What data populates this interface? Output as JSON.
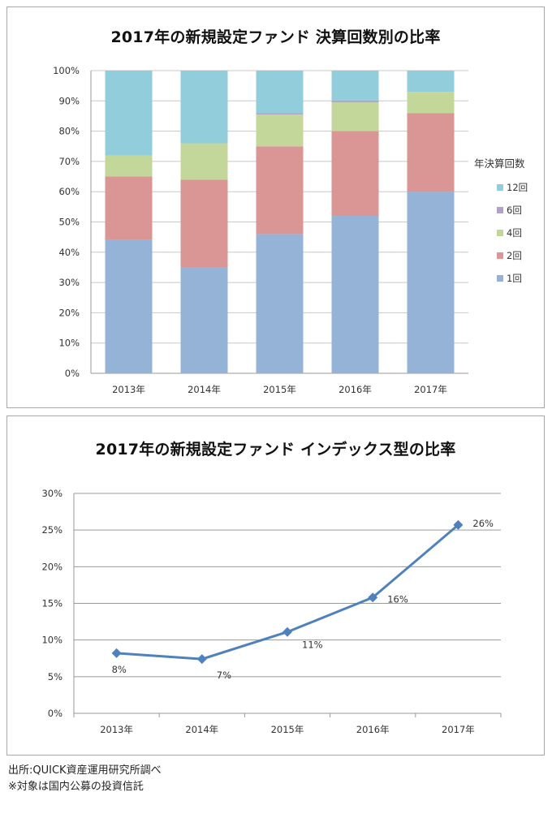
{
  "chart_data": [
    {
      "type": "bar",
      "stacked": true,
      "percent_stacked": true,
      "title": "2017年の新規設定ファンド  決算回数別の比率",
      "xlabel": "",
      "ylabel": "",
      "categories": [
        "2013年",
        "2014年",
        "2015年",
        "2016年",
        "2017年"
      ],
      "ylim": [
        0,
        100
      ],
      "yticks": [
        "0%",
        "10%",
        "20%",
        "30%",
        "40%",
        "50%",
        "60%",
        "70%",
        "80%",
        "90%",
        "100%"
      ],
      "grid": true,
      "legend": {
        "title": "年決算回数",
        "placement": "right"
      },
      "series": [
        {
          "name": "1回",
          "color": "#95b3d7",
          "values": [
            44,
            35,
            46,
            52,
            60
          ]
        },
        {
          "name": "2回",
          "color": "#da9694",
          "values": [
            21,
            29,
            29,
            28,
            26
          ]
        },
        {
          "name": "4回",
          "color": "#c4d79b",
          "values": [
            7,
            12,
            10.5,
            9.5,
            7
          ]
        },
        {
          "name": "6回",
          "color": "#b1a0c7",
          "values": [
            0,
            0,
            0.5,
            0.5,
            0
          ]
        },
        {
          "name": "12回",
          "color": "#92cddc",
          "values": [
            28,
            24,
            14,
            10,
            7
          ]
        }
      ]
    },
    {
      "type": "line",
      "title": "2017年の新規設定ファンド  インデックス型の比率",
      "xlabel": "",
      "ylabel": "",
      "categories": [
        "2013年",
        "2014年",
        "2015年",
        "2016年",
        "2017年"
      ],
      "ylim": [
        0,
        30
      ],
      "yticks": [
        "0%",
        "5%",
        "10%",
        "15%",
        "20%",
        "25%",
        "30%"
      ],
      "grid": true,
      "legend": null,
      "series": [
        {
          "name": "インデックス型の比率",
          "color": "#4f81bd",
          "marker": "diamond",
          "values": [
            8.2,
            7.4,
            11.1,
            15.8,
            25.7
          ],
          "labels": [
            "8%",
            "7%",
            "11%",
            "16%",
            "26%"
          ]
        }
      ]
    }
  ],
  "footer": {
    "source": "出所:QUICK資産運用研究所調べ",
    "note": "※対象は国内公募の投資信託"
  }
}
